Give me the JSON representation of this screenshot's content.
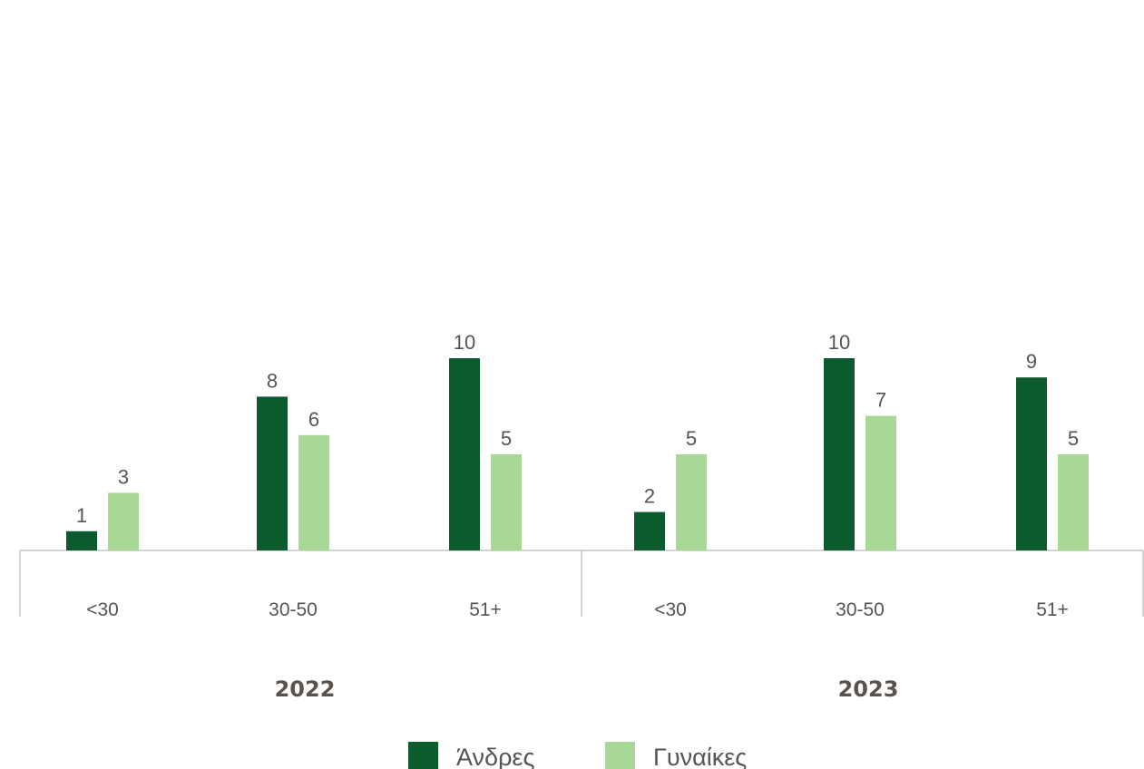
{
  "chart_data": {
    "type": "bar",
    "groups": [
      {
        "label": "2022",
        "categories": [
          "<30",
          "30-50",
          "51+"
        ]
      },
      {
        "label": "2023",
        "categories": [
          "<30",
          "30-50",
          "51+"
        ]
      }
    ],
    "series": [
      {
        "name": "Άνδρες",
        "color": "#0c5a2e",
        "values": [
          [
            1,
            8,
            10
          ],
          [
            2,
            10,
            9
          ]
        ]
      },
      {
        "name": "Γυναίκες",
        "color": "#a8d895",
        "values": [
          [
            3,
            6,
            5
          ],
          [
            5,
            7,
            5
          ]
        ]
      }
    ],
    "ylim": [
      0,
      10
    ],
    "grid": false,
    "legend_position": "bottom-center",
    "data_labels": true
  }
}
